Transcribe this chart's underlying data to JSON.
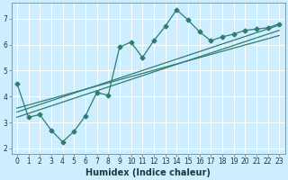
{
  "xlabel": "Humidex (Indice chaleur)",
  "bg_color": "#cceeff",
  "grid_color": "#ffffff",
  "line_color": "#2e7d6e",
  "xlim": [
    -0.5,
    23.5
  ],
  "ylim": [
    1.8,
    7.6
  ],
  "xticks": [
    0,
    1,
    2,
    3,
    4,
    5,
    6,
    7,
    8,
    9,
    10,
    11,
    12,
    13,
    14,
    15,
    16,
    17,
    18,
    19,
    20,
    21,
    22,
    23
  ],
  "yticks": [
    2,
    3,
    4,
    5,
    6,
    7
  ],
  "curve1_x": [
    0,
    1,
    2,
    3,
    4,
    5,
    6,
    7,
    8,
    9,
    10,
    11,
    12,
    13,
    14,
    15,
    16,
    17,
    18,
    19,
    20,
    21,
    22,
    23
  ],
  "curve1_y": [
    4.5,
    3.2,
    3.3,
    2.7,
    2.25,
    2.65,
    3.25,
    4.15,
    4.05,
    5.9,
    6.1,
    5.5,
    6.15,
    6.7,
    7.35,
    6.95,
    6.5,
    6.15,
    6.3,
    6.4,
    6.55,
    6.6,
    6.65,
    6.8
  ],
  "curve2_x": [
    0,
    23
  ],
  "curve2_y": [
    3.4,
    6.75
  ],
  "curve3_x": [
    0,
    23
  ],
  "curve3_y": [
    3.2,
    6.55
  ],
  "curve4_x": [
    0,
    23
  ],
  "curve4_y": [
    3.55,
    6.35
  ],
  "tick_fontsize": 5.5,
  "xlabel_fontsize": 7,
  "marker": "D",
  "markersize": 2.5,
  "linewidth": 0.9
}
